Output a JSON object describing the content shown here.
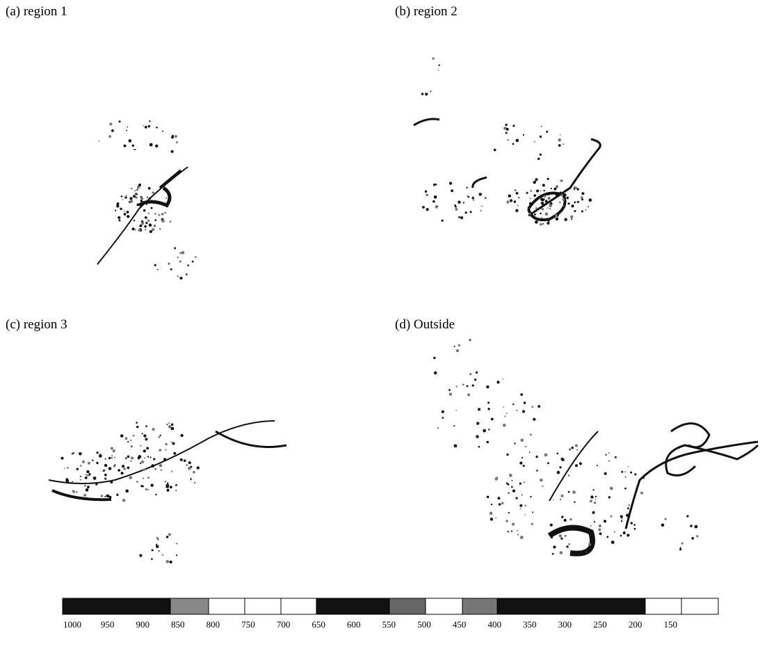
{
  "panels": [
    {
      "label": "(a) region 1"
    },
    {
      "label": "(b) region 2"
    },
    {
      "label": "(c) region 3"
    },
    {
      "label": "(d) Outside"
    }
  ],
  "colorbar": {
    "ticks": [
      "1000",
      "950",
      "900",
      "850",
      "800",
      "750",
      "700",
      "650",
      "600",
      "550",
      "500",
      "450",
      "400",
      "350",
      "300",
      "250",
      "200",
      "150"
    ]
  }
}
